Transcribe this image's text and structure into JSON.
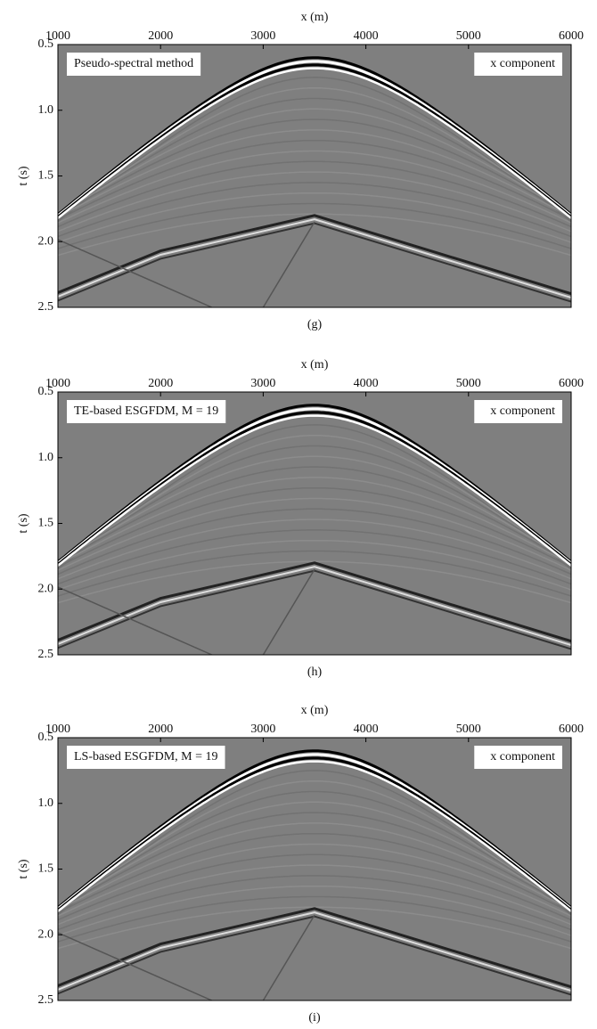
{
  "chart_data": [
    {
      "type": "seismogram",
      "x_label": "x (m)",
      "y_label": "t (s)",
      "annotation_left": "Pseudo-spectral method",
      "annotation_right": "x component",
      "caption": "(g)",
      "xlim": [
        1000,
        6000
      ],
      "ylim": [
        0.5,
        2.5
      ],
      "xticks": [
        1000,
        2000,
        3000,
        4000,
        5000,
        6000
      ],
      "yticks": [
        0.5,
        {
          "value": 1,
          "label": "1.0"
        },
        1.5,
        {
          "value": 2,
          "label": "2.0"
        },
        2.5
      ]
    },
    {
      "type": "seismogram",
      "x_label": "x (m)",
      "y_label": "t (s)",
      "annotation_left": "TE-based ESGFDM, M = 19",
      "annotation_right": "x component",
      "caption": "(h)",
      "xlim": [
        1000,
        6000
      ],
      "ylim": [
        0.5,
        2.5
      ],
      "xticks": [
        1000,
        2000,
        3000,
        4000,
        5000,
        6000
      ],
      "yticks": [
        0.5,
        {
          "value": 1,
          "label": "1.0"
        },
        1.5,
        {
          "value": 2,
          "label": "2.0"
        },
        2.5
      ]
    },
    {
      "type": "seismogram",
      "x_label": "x (m)",
      "y_label": "t (s)",
      "annotation_left": "LS-based ESGFDM, M = 19",
      "annotation_right": "x component",
      "caption": "(i)",
      "xlim": [
        1000,
        6000
      ],
      "ylim": [
        0.5,
        2.5
      ],
      "xticks": [
        1000,
        2000,
        3000,
        4000,
        5000,
        6000
      ],
      "yticks": [
        0.5,
        {
          "value": 1,
          "label": "1.0"
        },
        1.5,
        {
          "value": 2,
          "label": "2.0"
        },
        2.5
      ]
    }
  ]
}
